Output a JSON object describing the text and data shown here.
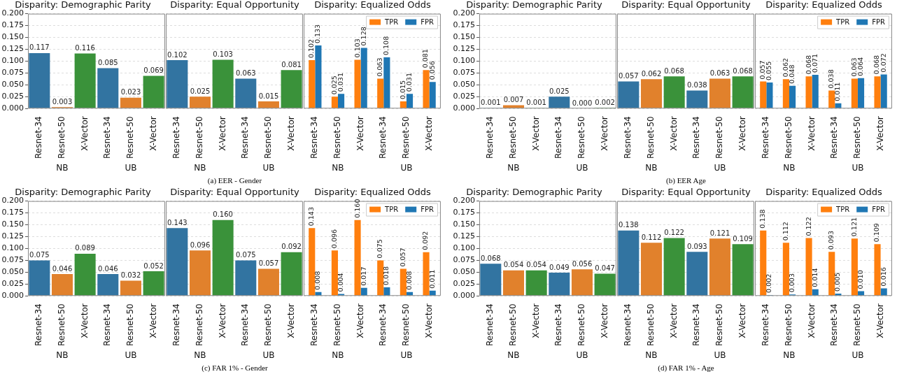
{
  "chart_data": [
    {
      "type": "bar",
      "title": "Disparity: Demographic Parity",
      "categories": [
        "Resnet-34",
        "Resnet-50",
        "X-Vector",
        "Resnet-34",
        "Resnet-50",
        "X-Vector"
      ],
      "values": [
        0.117,
        0.003,
        0.116,
        0.085,
        0.023,
        0.069
      ],
      "colors": [
        "#3274a1",
        "#e1812c",
        "#3a923a",
        "#3274a1",
        "#e1812c",
        "#3a923a"
      ],
      "ylim": [
        0,
        0.2
      ],
      "yticks": [
        {
          "value": 0,
          "label": "0.000"
        },
        0.025,
        {
          "value": 0.05,
          "label": "0.050"
        },
        0.075,
        {
          "value": 0.1,
          "label": "0.100"
        },
        0.125,
        {
          "value": 0.15,
          "label": "0.150"
        },
        0.175,
        {
          "value": 0.2,
          "label": "0.200"
        }
      ],
      "grid": "y",
      "data_labels": true,
      "annotations": [
        "NB",
        "UB"
      ]
    },
    {
      "type": "bar",
      "title": "Disparity: Equal Opportunity",
      "categories": [
        "Resnet-34",
        "Resnet-50",
        "X-Vector",
        "Resnet-34",
        "Resnet-50",
        "X-Vector"
      ],
      "values": [
        0.102,
        0.025,
        0.103,
        0.063,
        0.015,
        0.081
      ],
      "colors": [
        "#3274a1",
        "#e1812c",
        "#3a923a",
        "#3274a1",
        "#e1812c",
        "#3a923a"
      ],
      "ylim": [
        0,
        0.2
      ],
      "yticks": [
        {
          "value": 0,
          "label": null
        },
        {
          "value": 0.025,
          "label": null
        },
        {
          "value": 0.05,
          "label": null
        },
        {
          "value": 0.075,
          "label": null
        },
        {
          "value": 0.1,
          "label": null
        },
        {
          "value": 0.125,
          "label": null
        },
        {
          "value": 0.15,
          "label": null
        },
        {
          "value": 0.175,
          "label": null
        },
        {
          "value": 0.2,
          "label": null
        }
      ],
      "grid": "y",
      "tick_labels": "x",
      "data_labels": true,
      "annotations": [
        "NB",
        "UB",
        "(a) EER - Gender"
      ]
    },
    {
      "type": "bar",
      "title": "Disparity: Equalized Odds",
      "categories": [
        "Resnet-34",
        "Resnet-50",
        "X-Vector",
        "Resnet-34",
        "Resnet-50",
        "X-Vector"
      ],
      "series": [
        {
          "name": "TPR",
          "color": "#ff7f0e",
          "values": [
            0.102,
            0.025,
            0.103,
            0.063,
            0.015,
            0.081
          ]
        },
        {
          "name": "FPR",
          "color": "#1f77b4",
          "values": [
            0.133,
            0.031,
            0.128,
            0.108,
            0.031,
            0.056
          ]
        }
      ],
      "ylim": [
        0,
        0.2
      ],
      "yticks": [
        {
          "value": 0,
          "label": null
        },
        {
          "value": 0.025,
          "label": null
        },
        {
          "value": 0.05,
          "label": null
        },
        {
          "value": 0.075,
          "label": null
        },
        {
          "value": 0.1,
          "label": null
        },
        {
          "value": 0.125,
          "label": null
        },
        {
          "value": 0.15,
          "label": null
        },
        {
          "value": 0.175,
          "label": null
        },
        {
          "value": 0.2,
          "label": null
        }
      ],
      "grid": "y",
      "tick_labels": "x",
      "legend": "top right",
      "data_labels": true,
      "annotations": [
        "NB",
        "UB"
      ]
    },
    {
      "type": "bar",
      "title": "Disparity: Demographic Parity",
      "categories": [
        "Resnet-34",
        "Resnet-50",
        "X-Vector",
        "Resnet-34",
        "Resnet-50",
        "X-Vector"
      ],
      "values": [
        0.001,
        0.007,
        0.001,
        0.025,
        0.0,
        0.002
      ],
      "value_labels": [
        "0.001",
        "0.007",
        "0.001",
        "0.025",
        "0.000",
        "0.002"
      ],
      "colors": [
        "#3274a1",
        "#e1812c",
        "#3a923a",
        "#3274a1",
        "#e1812c",
        "#3a923a"
      ],
      "ylim": [
        0,
        0.2
      ],
      "yticks": [
        {
          "value": 0,
          "label": "0.000"
        },
        0.025,
        {
          "value": 0.05,
          "label": "0.050"
        },
        0.075,
        {
          "value": 0.1,
          "label": "0.100"
        },
        0.125,
        {
          "value": 0.15,
          "label": "0.150"
        },
        0.175,
        {
          "value": 0.2,
          "label": "0.200"
        }
      ],
      "grid": "y",
      "annotations": [
        "NB",
        "UB"
      ]
    },
    {
      "type": "bar",
      "title": "Disparity: Equal Opportunity",
      "categories": [
        "Resnet-34",
        "Resnet-50",
        "X-Vector",
        "Resnet-34",
        "Resnet-50",
        "X-Vector"
      ],
      "values": [
        0.057,
        0.062,
        0.068,
        0.038,
        0.063,
        0.068
      ],
      "colors": [
        "#3274a1",
        "#e1812c",
        "#3a923a",
        "#3274a1",
        "#e1812c",
        "#3a923a"
      ],
      "ylim": [
        0,
        0.2
      ],
      "yticks": [
        {
          "value": 0,
          "label": null
        },
        {
          "value": 0.025,
          "label": null
        },
        {
          "value": 0.05,
          "label": null
        },
        {
          "value": 0.075,
          "label": null
        },
        {
          "value": 0.1,
          "label": null
        },
        {
          "value": 0.125,
          "label": null
        },
        {
          "value": 0.15,
          "label": null
        },
        {
          "value": 0.175,
          "label": null
        },
        {
          "value": 0.2,
          "label": null
        }
      ],
      "grid": "y",
      "tick_labels": "x",
      "data_labels": true,
      "annotations": [
        "NB",
        "UB",
        "(b) EER Age"
      ]
    },
    {
      "type": "bar",
      "title": "Disparity: Equalized Odds",
      "categories": [
        "Resnet-34",
        "Resnet-50",
        "X-Vector",
        "Resnet-34",
        "Resnet-50",
        "X-Vector"
      ],
      "series": [
        {
          "name": "TPR",
          "color": "#ff7f0e",
          "values": [
            0.057,
            0.062,
            0.068,
            0.038,
            0.063,
            0.068
          ]
        },
        {
          "name": "FPR",
          "color": "#1f77b4",
          "values": [
            0.055,
            0.048,
            0.071,
            0.011,
            0.064,
            0.072
          ]
        }
      ],
      "ylim": [
        0,
        0.2
      ],
      "yticks": [
        {
          "value": 0,
          "label": null
        },
        {
          "value": 0.025,
          "label": null
        },
        {
          "value": 0.05,
          "label": null
        },
        {
          "value": 0.075,
          "label": null
        },
        {
          "value": 0.1,
          "label": null
        },
        {
          "value": 0.125,
          "label": null
        },
        {
          "value": 0.15,
          "label": null
        },
        {
          "value": 0.175,
          "label": null
        },
        {
          "value": 0.2,
          "label": null
        }
      ],
      "grid": "y",
      "tick_labels": "x",
      "legend": "top right",
      "data_labels": true,
      "annotations": [
        "NB",
        "UB"
      ]
    },
    {
      "type": "bar",
      "title": "Disparity: Demographic Parity",
      "categories": [
        "Resnet-34",
        "Resnet-50",
        "X-Vector",
        "Resnet-34",
        "Resnet-50",
        "X-Vector"
      ],
      "values": [
        0.075,
        0.046,
        0.089,
        0.046,
        0.032,
        0.052
      ],
      "colors": [
        "#3274a1",
        "#e1812c",
        "#3a923a",
        "#3274a1",
        "#e1812c",
        "#3a923a"
      ],
      "ylim": [
        0,
        0.2
      ],
      "yticks": [
        {
          "value": 0,
          "label": "0.000"
        },
        0.025,
        {
          "value": 0.05,
          "label": "0.050"
        },
        0.075,
        {
          "value": 0.1,
          "label": "0.100"
        },
        0.125,
        {
          "value": 0.15,
          "label": "0.150"
        },
        0.175,
        {
          "value": 0.2,
          "label": "0.200"
        }
      ],
      "grid": "y",
      "data_labels": true,
      "annotations": [
        "NB",
        "UB"
      ]
    },
    {
      "type": "bar",
      "title": "Disparity: Equal Opportunity",
      "categories": [
        "Resnet-34",
        "Resnet-50",
        "X-Vector",
        "Resnet-34",
        "Resnet-50",
        "X-Vector"
      ],
      "values": [
        0.143,
        0.096,
        0.16,
        0.075,
        0.057,
        0.092
      ],
      "value_labels": [
        "0.143",
        "0.096",
        "0.160",
        "0.075",
        "0.057",
        "0.092"
      ],
      "colors": [
        "#3274a1",
        "#e1812c",
        "#3a923a",
        "#3274a1",
        "#e1812c",
        "#3a923a"
      ],
      "ylim": [
        0,
        0.2
      ],
      "yticks": [
        {
          "value": 0,
          "label": null
        },
        {
          "value": 0.025,
          "label": null
        },
        {
          "value": 0.05,
          "label": null
        },
        {
          "value": 0.075,
          "label": null
        },
        {
          "value": 0.1,
          "label": null
        },
        {
          "value": 0.125,
          "label": null
        },
        {
          "value": 0.15,
          "label": null
        },
        {
          "value": 0.175,
          "label": null
        },
        {
          "value": 0.2,
          "label": null
        }
      ],
      "grid": "y",
      "tick_labels": "x",
      "annotations": [
        "NB",
        "UB",
        "(c) FAR 1% - Gender"
      ]
    },
    {
      "type": "bar",
      "title": "Disparity: Equalized Odds",
      "categories": [
        "Resnet-34",
        "Resnet-50",
        "X-Vector",
        "Resnet-34",
        "Resnet-50",
        "X-Vector"
      ],
      "series": [
        {
          "name": "TPR",
          "color": "#ff7f0e",
          "values": [
            0.143,
            0.096,
            0.16,
            0.075,
            0.057,
            0.092
          ],
          "value_labels": [
            "0.143",
            "0.096",
            "0.160",
            "0.075",
            "0.057",
            "0.092"
          ]
        },
        {
          "name": "FPR",
          "color": "#1f77b4",
          "values": [
            0.008,
            0.004,
            0.017,
            0.018,
            0.008,
            0.011
          ],
          "value_labels": [
            "0.008",
            "0.004",
            "0.017",
            "0.018",
            "0.008",
            "0.011"
          ]
        }
      ],
      "ylim": [
        0,
        0.2
      ],
      "yticks": [
        {
          "value": 0,
          "label": null
        },
        {
          "value": 0.025,
          "label": null
        },
        {
          "value": 0.05,
          "label": null
        },
        {
          "value": 0.075,
          "label": null
        },
        {
          "value": 0.1,
          "label": null
        },
        {
          "value": 0.125,
          "label": null
        },
        {
          "value": 0.15,
          "label": null
        },
        {
          "value": 0.175,
          "label": null
        },
        {
          "value": 0.2,
          "label": null
        }
      ],
      "grid": "y",
      "tick_labels": "x",
      "legend": "top right",
      "annotations": [
        "NB",
        "UB"
      ]
    },
    {
      "type": "bar",
      "title": "Disparity: Demographic Parity",
      "categories": [
        "Resnet-34",
        "Resnet-50",
        "X-Vector",
        "Resnet-34",
        "Resnet-50",
        "X-Vector"
      ],
      "values": [
        0.068,
        0.054,
        0.054,
        0.049,
        0.056,
        0.047
      ],
      "colors": [
        "#3274a1",
        "#e1812c",
        "#3a923a",
        "#3274a1",
        "#e1812c",
        "#3a923a"
      ],
      "ylim": [
        0,
        0.2
      ],
      "yticks": [
        {
          "value": 0,
          "label": "0.000"
        },
        0.025,
        {
          "value": 0.05,
          "label": "0.050"
        },
        0.075,
        {
          "value": 0.1,
          "label": "0.100"
        },
        0.125,
        {
          "value": 0.15,
          "label": "0.150"
        },
        0.175,
        {
          "value": 0.2,
          "label": "0.200"
        }
      ],
      "grid": "y",
      "data_labels": true,
      "annotations": [
        "NB",
        "UB"
      ]
    },
    {
      "type": "bar",
      "title": "Disparity: Equal Opportunity",
      "categories": [
        "Resnet-34",
        "Resnet-50",
        "X-Vector",
        "Resnet-34",
        "Resnet-50",
        "X-Vector"
      ],
      "values": [
        0.138,
        0.112,
        0.122,
        0.093,
        0.121,
        0.109
      ],
      "colors": [
        "#3274a1",
        "#e1812c",
        "#3a923a",
        "#3274a1",
        "#e1812c",
        "#3a923a"
      ],
      "ylim": [
        0,
        0.2
      ],
      "yticks": [
        {
          "value": 0,
          "label": null
        },
        {
          "value": 0.025,
          "label": null
        },
        {
          "value": 0.05,
          "label": null
        },
        {
          "value": 0.075,
          "label": null
        },
        {
          "value": 0.1,
          "label": null
        },
        {
          "value": 0.125,
          "label": null
        },
        {
          "value": 0.15,
          "label": null
        },
        {
          "value": 0.175,
          "label": null
        },
        {
          "value": 0.2,
          "label": null
        }
      ],
      "grid": "y",
      "tick_labels": "x",
      "data_labels": true,
      "annotations": [
        "NB",
        "UB",
        "(d) FAR 1% - Age"
      ]
    },
    {
      "type": "bar",
      "title": "Disparity: Equalized Odds",
      "categories": [
        "Resnet-34",
        "Resnet-50",
        "X-Vector",
        "Resnet-34",
        "Resnet-50",
        "X-Vector"
      ],
      "series": [
        {
          "name": "TPR",
          "color": "#ff7f0e",
          "values": [
            0.138,
            0.112,
            0.122,
            0.093,
            0.121,
            0.109
          ],
          "value_labels": [
            "0.138",
            "0.112",
            "0.122",
            "0.093",
            "0.121",
            "0.109"
          ]
        },
        {
          "name": "FPR",
          "color": "#1f77b4",
          "values": [
            0.002,
            0.003,
            0.014,
            0.005,
            0.01,
            0.016
          ],
          "value_labels": [
            "0.002",
            "0.003",
            "0.014",
            "0.005",
            "0.010",
            "0.016"
          ]
        }
      ],
      "ylim": [
        0,
        0.2
      ],
      "yticks": [
        {
          "value": 0,
          "label": null
        },
        {
          "value": 0.025,
          "label": null
        },
        {
          "value": 0.05,
          "label": null
        },
        {
          "value": 0.075,
          "label": null
        },
        {
          "value": 0.1,
          "label": null
        },
        {
          "value": 0.125,
          "label": null
        },
        {
          "value": 0.15,
          "label": null
        },
        {
          "value": 0.175,
          "label": null
        },
        {
          "value": 0.2,
          "label": null
        }
      ],
      "grid": "y",
      "tick_labels": "x",
      "legend": "top right",
      "annotations": [
        "NB",
        "UB"
      ]
    }
  ]
}
